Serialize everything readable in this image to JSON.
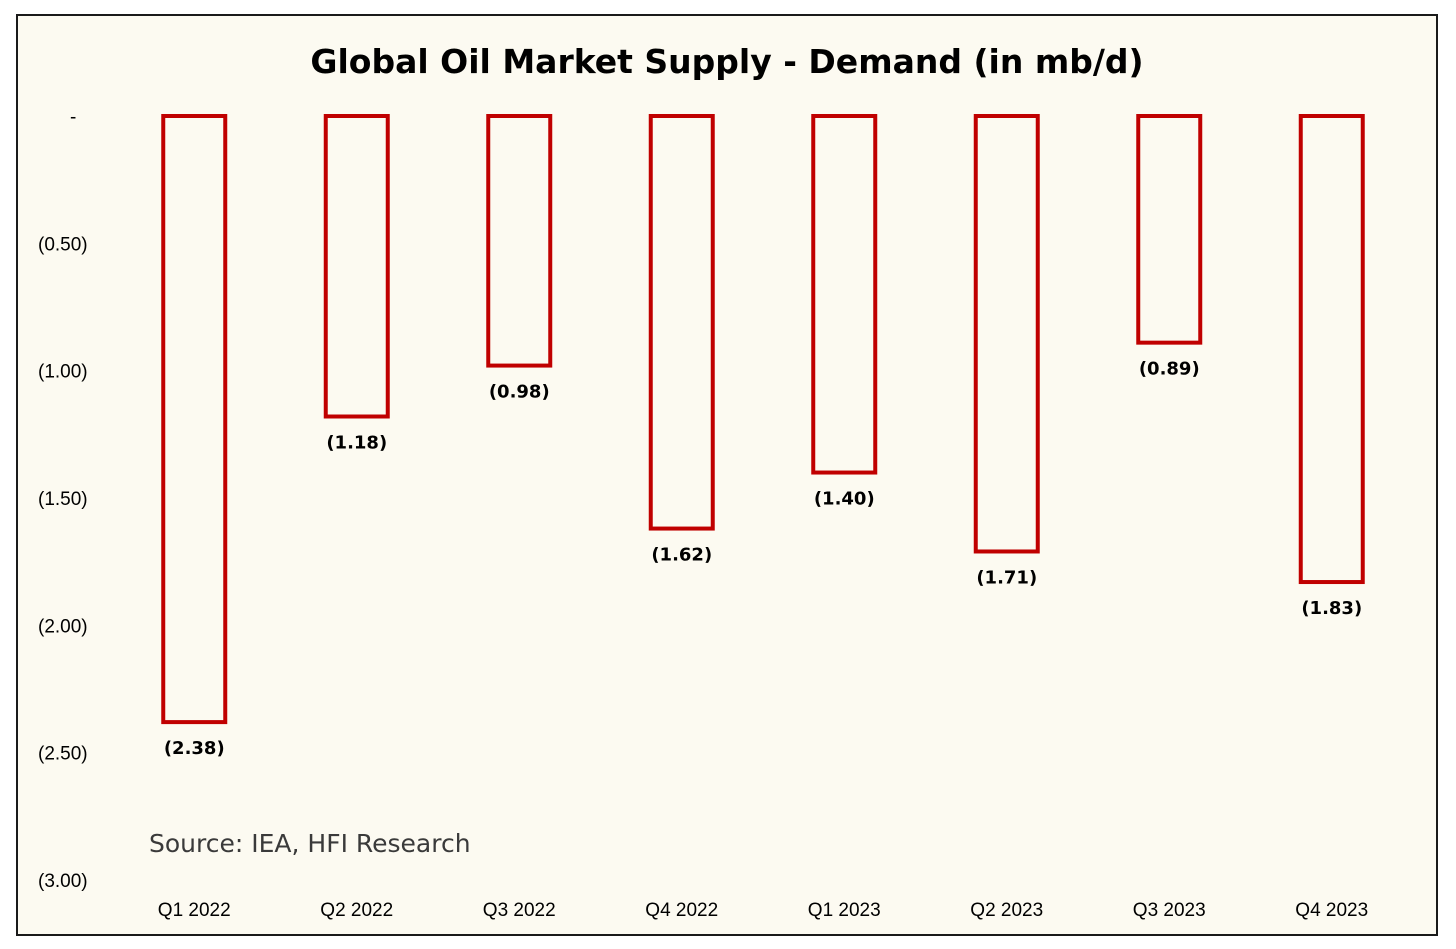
{
  "chart_data": {
    "type": "bar",
    "title": "Global Oil Market Supply - Demand (in mb/d)",
    "source": "Source: IEA, HFI Research",
    "categories": [
      "Q1 2022",
      "Q2 2022",
      "Q3 2022",
      "Q4 2022",
      "Q1 2023",
      "Q2 2023",
      "Q3 2023",
      "Q4 2023"
    ],
    "values": [
      -2.38,
      -1.18,
      -0.98,
      -1.62,
      -1.4,
      -1.71,
      -0.89,
      -1.83
    ],
    "data_labels": [
      "(2.38)",
      "(1.18)",
      "(0.98)",
      "(1.62)",
      "(1.40)",
      "(1.71)",
      "(0.89)",
      "(1.83)"
    ],
    "ylim": [
      -3.0,
      0
    ],
    "yticks": [
      0,
      -0.5,
      -1.0,
      -1.5,
      -2.0,
      -2.5,
      -3.0
    ],
    "ytick_labels": [
      "-",
      "(0.50)",
      "(1.00)",
      "(1.50)",
      "(2.00)",
      "(2.50)",
      "(3.00)"
    ],
    "grid": false,
    "legend": "none",
    "bar_style": "outline",
    "bar_color": "#c00000",
    "background_color": "#fcfaf1"
  }
}
